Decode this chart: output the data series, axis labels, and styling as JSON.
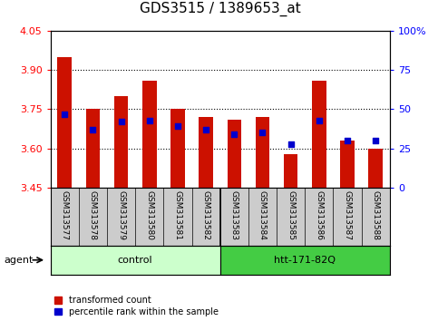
{
  "title": "GDS3515 / 1389653_at",
  "samples": [
    "GSM313577",
    "GSM313578",
    "GSM313579",
    "GSM313580",
    "GSM313581",
    "GSM313582",
    "GSM313583",
    "GSM313584",
    "GSM313585",
    "GSM313586",
    "GSM313587",
    "GSM313588"
  ],
  "transformed_count": [
    3.95,
    3.75,
    3.8,
    3.86,
    3.75,
    3.72,
    3.71,
    3.72,
    3.58,
    3.86,
    3.63,
    3.6
  ],
  "percentile_rank": [
    47,
    37,
    42,
    43,
    39,
    37,
    34,
    35,
    28,
    43,
    30,
    30
  ],
  "ylim_left": [
    3.45,
    4.05
  ],
  "yticks_left": [
    3.45,
    3.6,
    3.75,
    3.9,
    4.05
  ],
  "ylim_right": [
    0,
    100
  ],
  "yticks_right": [
    0,
    25,
    50,
    75,
    100
  ],
  "bar_color": "#cc1100",
  "dot_color": "#0000cc",
  "background_plot": "#ffffff",
  "xtick_bg": "#cccccc",
  "grid_lines": [
    3.6,
    3.75,
    3.9
  ],
  "control_color": "#ccffcc",
  "htt_color": "#44cc44",
  "legend_items": [
    {
      "label": "transformed count",
      "color": "#cc1100"
    },
    {
      "label": "percentile rank within the sample",
      "color": "#0000cc"
    }
  ],
  "title_fontsize": 11,
  "tick_fontsize": 8,
  "bar_width": 0.5,
  "n_control": 6,
  "n_htt": 6
}
